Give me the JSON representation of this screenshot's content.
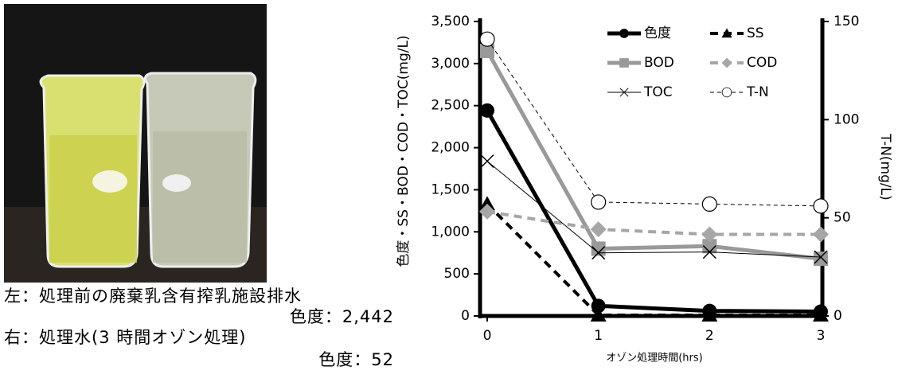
{
  "chart_data": {
    "type": "line",
    "x_label": "オゾン処理時間(hrs)",
    "y_label": "色度・SS・BOD・COD・TOC(mg/L)",
    "y2_label": "T-N(mg/L)",
    "x": [
      0,
      1,
      2,
      3
    ],
    "xlim": [
      0,
      3
    ],
    "xticks": [
      0,
      1,
      2,
      3
    ],
    "ylim": [
      0,
      3500
    ],
    "yticks": [
      0,
      500,
      {
        "value": 1000,
        "label": "1,000"
      },
      {
        "value": 1500,
        "label": "1,500"
      },
      {
        "value": 2000,
        "label": "2,000"
      },
      {
        "value": 2500,
        "label": "2,500"
      },
      {
        "value": 3000,
        "label": "3,000"
      },
      {
        "value": 3500,
        "label": "3,500"
      }
    ],
    "y2lim": [
      0,
      150
    ],
    "y2ticks": [
      0,
      50,
      100,
      150
    ],
    "grid": false,
    "legend": "top-right",
    "series": [
      {
        "name": "色度",
        "color": "#000000",
        "line_style": "solid",
        "marker": "circle",
        "values": [
          2442,
          120,
          60,
          52
        ]
      },
      {
        "name": "SS",
        "color": "#000000",
        "line_style": "dashed",
        "marker": "triangle",
        "values": [
          1330,
          10,
          10,
          10
        ]
      },
      {
        "name": "BOD",
        "color": "#999999",
        "line_style": "solid",
        "marker": "square",
        "values": [
          3150,
          800,
          830,
          680
        ]
      },
      {
        "name": "COD",
        "color": "#a6a6a6",
        "line_style": "dashed",
        "marker": "diamond",
        "values": [
          1240,
          1030,
          970,
          970
        ]
      },
      {
        "name": "TOC",
        "color": "#000000",
        "line_style": "solid",
        "marker": "x",
        "values": [
          1840,
          750,
          760,
          700
        ]
      },
      {
        "name": "T-N",
        "color": "#000000",
        "line_style": "dashed",
        "marker": "open-circle",
        "axis": "y2",
        "values": [
          141,
          58,
          57,
          56
        ]
      }
    ]
  },
  "caption": {
    "left": "左：処理前の廃棄乳含有搾乳施設排水",
    "left_color": "色度：2,442",
    "right": "右：処理水(3 時間オゾン処理)",
    "right_color": "色度：52"
  }
}
